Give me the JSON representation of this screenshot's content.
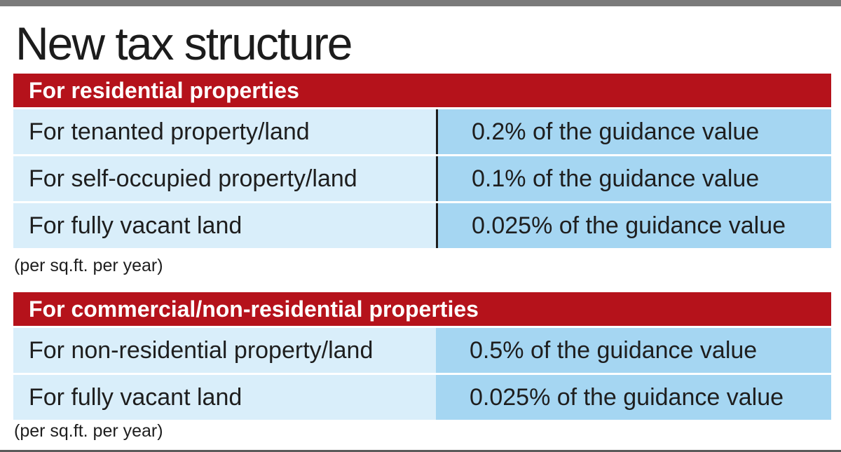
{
  "title": "New tax structure",
  "residential": {
    "header": "For residential properties",
    "rows": [
      {
        "label": "For tenanted property/land",
        "value": "0.2% of the guidance value"
      },
      {
        "label": "For self-occupied property/land",
        "value": "0.1% of the guidance value"
      },
      {
        "label": "For fully vacant land",
        "value": "0.025% of the guidance value"
      }
    ],
    "note": "(per sq.ft. per year)"
  },
  "commercial": {
    "header": "For commercial/non-residential properties",
    "rows": [
      {
        "label": "For non-residential property/land",
        "value": "0.5% of the guidance value"
      },
      {
        "label": "For fully vacant land",
        "value": "0.025% of the guidance value"
      }
    ],
    "note": "(per sq.ft. per year)"
  },
  "colors": {
    "header_red": "#b5121b",
    "label_blue": "#d9eefa",
    "value_blue": "#a5d6f2"
  }
}
